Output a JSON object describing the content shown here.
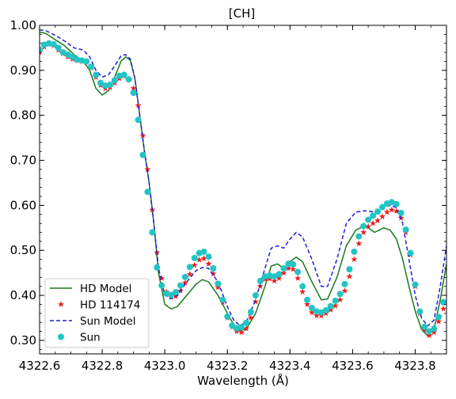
{
  "chart_data": {
    "type": "line",
    "title": "[CH]",
    "xlabel": "Wavelength (Å)",
    "ylabel": "",
    "xlim": [
      4322.6,
      4323.9
    ],
    "ylim": [
      0.27,
      1.0
    ],
    "x_ticks": [
      4322.6,
      4322.8,
      4323.0,
      4323.2,
      4323.4,
      4323.6,
      4323.8
    ],
    "x_tick_labels": [
      "4322.6",
      "4322.8",
      "4323.0",
      "4323.2",
      "4323.4",
      "4323.6",
      "4323.8"
    ],
    "y_ticks": [
      0.3,
      0.4,
      0.5,
      0.6,
      0.7,
      0.8,
      0.9,
      1.0
    ],
    "y_tick_labels": [
      "0.30",
      "0.40",
      "0.50",
      "0.60",
      "0.70",
      "0.80",
      "0.90",
      "1.00"
    ],
    "legend_position": "lower-left",
    "series": [
      {
        "name": "HD Model",
        "style": "line",
        "color": "#1a7a1a",
        "points": [
          [
            4322.6,
            0.985
          ],
          [
            4322.62,
            0.982
          ],
          [
            4322.65,
            0.968
          ],
          [
            4322.68,
            0.955
          ],
          [
            4322.71,
            0.935
          ],
          [
            4322.74,
            0.92
          ],
          [
            4322.76,
            0.9
          ],
          [
            4322.78,
            0.86
          ],
          [
            4322.8,
            0.845
          ],
          [
            4322.82,
            0.855
          ],
          [
            4322.84,
            0.885
          ],
          [
            4322.86,
            0.92
          ],
          [
            4322.875,
            0.93
          ],
          [
            4322.89,
            0.922
          ],
          [
            4322.905,
            0.88
          ],
          [
            4322.92,
            0.8
          ],
          [
            4322.935,
            0.72
          ],
          [
            4322.95,
            0.65
          ],
          [
            4322.965,
            0.56
          ],
          [
            4322.98,
            0.45
          ],
          [
            4323.0,
            0.38
          ],
          [
            4323.02,
            0.37
          ],
          [
            4323.04,
            0.375
          ],
          [
            4323.07,
            0.4
          ],
          [
            4323.1,
            0.425
          ],
          [
            4323.12,
            0.435
          ],
          [
            4323.14,
            0.43
          ],
          [
            4323.17,
            0.4
          ],
          [
            4323.2,
            0.36
          ],
          [
            4323.22,
            0.335
          ],
          [
            4323.24,
            0.322
          ],
          [
            4323.26,
            0.325
          ],
          [
            4323.29,
            0.36
          ],
          [
            4323.32,
            0.42
          ],
          [
            4323.34,
            0.465
          ],
          [
            4323.36,
            0.47
          ],
          [
            4323.38,
            0.46
          ],
          [
            4323.4,
            0.475
          ],
          [
            4323.42,
            0.485
          ],
          [
            4323.44,
            0.475
          ],
          [
            4323.47,
            0.43
          ],
          [
            4323.5,
            0.39
          ],
          [
            4323.52,
            0.392
          ],
          [
            4323.55,
            0.44
          ],
          [
            4323.58,
            0.51
          ],
          [
            4323.61,
            0.545
          ],
          [
            4323.64,
            0.555
          ],
          [
            4323.67,
            0.54
          ],
          [
            4323.7,
            0.55
          ],
          [
            4323.72,
            0.545
          ],
          [
            4323.74,
            0.525
          ],
          [
            4323.76,
            0.48
          ],
          [
            4323.78,
            0.42
          ],
          [
            4323.8,
            0.365
          ],
          [
            4323.82,
            0.325
          ],
          [
            4323.84,
            0.31
          ],
          [
            4323.86,
            0.325
          ],
          [
            4323.88,
            0.39
          ],
          [
            4323.9,
            0.47
          ]
        ]
      },
      {
        "name": "HD 114174",
        "style": "star",
        "color": "#ee1c1c",
        "points": [
          [
            4322.6,
            0.94
          ],
          [
            4322.615,
            0.952
          ],
          [
            4322.63,
            0.958
          ],
          [
            4322.645,
            0.955
          ],
          [
            4322.66,
            0.945
          ],
          [
            4322.675,
            0.937
          ],
          [
            4322.69,
            0.93
          ],
          [
            4322.705,
            0.925
          ],
          [
            4322.72,
            0.922
          ],
          [
            4322.735,
            0.92
          ],
          [
            4322.75,
            0.918
          ],
          [
            4322.765,
            0.905
          ],
          [
            4322.78,
            0.885
          ],
          [
            4322.795,
            0.867
          ],
          [
            4322.81,
            0.86
          ],
          [
            4322.825,
            0.862
          ],
          [
            4322.84,
            0.872
          ],
          [
            4322.855,
            0.882
          ],
          [
            4322.87,
            0.887
          ],
          [
            4322.885,
            0.88
          ],
          [
            4322.9,
            0.86
          ],
          [
            4322.915,
            0.822
          ],
          [
            4322.93,
            0.755
          ],
          [
            4322.945,
            0.68
          ],
          [
            4322.96,
            0.59
          ],
          [
            4322.975,
            0.495
          ],
          [
            4322.99,
            0.438
          ],
          [
            4323.005,
            0.408
          ],
          [
            4323.02,
            0.396
          ],
          [
            4323.035,
            0.398
          ],
          [
            4323.05,
            0.41
          ],
          [
            4323.065,
            0.428
          ],
          [
            4323.08,
            0.447
          ],
          [
            4323.095,
            0.467
          ],
          [
            4323.11,
            0.479
          ],
          [
            4323.125,
            0.482
          ],
          [
            4323.14,
            0.47
          ],
          [
            4323.155,
            0.448
          ],
          [
            4323.17,
            0.418
          ],
          [
            4323.185,
            0.385
          ],
          [
            4323.2,
            0.35
          ],
          [
            4323.215,
            0.33
          ],
          [
            4323.23,
            0.32
          ],
          [
            4323.245,
            0.318
          ],
          [
            4323.26,
            0.326
          ],
          [
            4323.275,
            0.35
          ],
          [
            4323.29,
            0.386
          ],
          [
            4323.305,
            0.42
          ],
          [
            4323.32,
            0.436
          ],
          [
            4323.335,
            0.437
          ],
          [
            4323.35,
            0.432
          ],
          [
            4323.365,
            0.438
          ],
          [
            4323.38,
            0.45
          ],
          [
            4323.395,
            0.46
          ],
          [
            4323.41,
            0.458
          ],
          [
            4323.425,
            0.438
          ],
          [
            4323.44,
            0.408
          ],
          [
            4323.455,
            0.38
          ],
          [
            4323.47,
            0.362
          ],
          [
            4323.485,
            0.355
          ],
          [
            4323.5,
            0.355
          ],
          [
            4323.515,
            0.36
          ],
          [
            4323.53,
            0.368
          ],
          [
            4323.545,
            0.377
          ],
          [
            4323.56,
            0.39
          ],
          [
            4323.575,
            0.41
          ],
          [
            4323.59,
            0.442
          ],
          [
            4323.605,
            0.48
          ],
          [
            4323.62,
            0.515
          ],
          [
            4323.635,
            0.54
          ],
          [
            4323.65,
            0.553
          ],
          [
            4323.665,
            0.56
          ],
          [
            4323.68,
            0.566
          ],
          [
            4323.695,
            0.575
          ],
          [
            4323.71,
            0.585
          ],
          [
            4323.725,
            0.59
          ],
          [
            4323.74,
            0.587
          ],
          [
            4323.755,
            0.572
          ],
          [
            4323.77,
            0.54
          ],
          [
            4323.785,
            0.49
          ],
          [
            4323.8,
            0.42
          ],
          [
            4323.815,
            0.36
          ],
          [
            4323.83,
            0.323
          ],
          [
            4323.845,
            0.311
          ],
          [
            4323.86,
            0.318
          ],
          [
            4323.875,
            0.342
          ],
          [
            4323.89,
            0.37
          ]
        ]
      },
      {
        "name": "Sun Model",
        "style": "dashed",
        "color": "#1f1fd6",
        "points": [
          [
            4322.6,
            0.99
          ],
          [
            4322.62,
            0.988
          ],
          [
            4322.65,
            0.978
          ],
          [
            4322.68,
            0.965
          ],
          [
            4322.71,
            0.95
          ],
          [
            4322.74,
            0.945
          ],
          [
            4322.76,
            0.93
          ],
          [
            4322.78,
            0.9
          ],
          [
            4322.8,
            0.885
          ],
          [
            4322.82,
            0.89
          ],
          [
            4322.84,
            0.91
          ],
          [
            4322.86,
            0.932
          ],
          [
            4322.875,
            0.935
          ],
          [
            4322.89,
            0.925
          ],
          [
            4322.905,
            0.88
          ],
          [
            4322.92,
            0.8
          ],
          [
            4322.935,
            0.72
          ],
          [
            4322.95,
            0.65
          ],
          [
            4322.965,
            0.56
          ],
          [
            4322.98,
            0.46
          ],
          [
            4323.0,
            0.4
          ],
          [
            4323.02,
            0.393
          ],
          [
            4323.04,
            0.4
          ],
          [
            4323.07,
            0.43
          ],
          [
            4323.1,
            0.455
          ],
          [
            4323.12,
            0.462
          ],
          [
            4323.14,
            0.46
          ],
          [
            4323.17,
            0.43
          ],
          [
            4323.2,
            0.375
          ],
          [
            4323.22,
            0.345
          ],
          [
            4323.24,
            0.333
          ],
          [
            4323.26,
            0.34
          ],
          [
            4323.29,
            0.39
          ],
          [
            4323.32,
            0.46
          ],
          [
            4323.34,
            0.505
          ],
          [
            4323.36,
            0.51
          ],
          [
            4323.38,
            0.505
          ],
          [
            4323.4,
            0.525
          ],
          [
            4323.42,
            0.54
          ],
          [
            4323.44,
            0.53
          ],
          [
            4323.47,
            0.48
          ],
          [
            4323.5,
            0.42
          ],
          [
            4323.52,
            0.42
          ],
          [
            4323.55,
            0.48
          ],
          [
            4323.58,
            0.56
          ],
          [
            4323.61,
            0.585
          ],
          [
            4323.64,
            0.588
          ],
          [
            4323.67,
            0.585
          ],
          [
            4323.7,
            0.595
          ],
          [
            4323.72,
            0.6
          ],
          [
            4323.74,
            0.595
          ],
          [
            4323.76,
            0.56
          ],
          [
            4323.78,
            0.48
          ],
          [
            4323.8,
            0.4
          ],
          [
            4323.82,
            0.35
          ],
          [
            4323.84,
            0.332
          ],
          [
            4323.86,
            0.345
          ],
          [
            4323.88,
            0.42
          ],
          [
            4323.9,
            0.51
          ]
        ]
      },
      {
        "name": "Sun",
        "style": "circle",
        "color": "#22c4c4",
        "points": [
          [
            4322.6,
            0.946
          ],
          [
            4322.615,
            0.957
          ],
          [
            4322.63,
            0.96
          ],
          [
            4322.645,
            0.958
          ],
          [
            4322.66,
            0.95
          ],
          [
            4322.675,
            0.94
          ],
          [
            4322.69,
            0.935
          ],
          [
            4322.705,
            0.93
          ],
          [
            4322.72,
            0.924
          ],
          [
            4322.735,
            0.922
          ],
          [
            4322.75,
            0.92
          ],
          [
            4322.765,
            0.908
          ],
          [
            4322.78,
            0.89
          ],
          [
            4322.795,
            0.872
          ],
          [
            4322.81,
            0.866
          ],
          [
            4322.825,
            0.868
          ],
          [
            4322.84,
            0.878
          ],
          [
            4322.855,
            0.888
          ],
          [
            4322.87,
            0.89
          ],
          [
            4322.885,
            0.88
          ],
          [
            4322.9,
            0.85
          ],
          [
            4322.915,
            0.79
          ],
          [
            4322.93,
            0.712
          ],
          [
            4322.945,
            0.63
          ],
          [
            4322.96,
            0.54
          ],
          [
            4322.975,
            0.462
          ],
          [
            4322.99,
            0.422
          ],
          [
            4323.005,
            0.404
          ],
          [
            4323.02,
            0.401
          ],
          [
            4323.035,
            0.407
          ],
          [
            4323.05,
            0.422
          ],
          [
            4323.065,
            0.441
          ],
          [
            4323.08,
            0.463
          ],
          [
            4323.095,
            0.483
          ],
          [
            4323.11,
            0.494
          ],
          [
            4323.125,
            0.497
          ],
          [
            4323.14,
            0.486
          ],
          [
            4323.155,
            0.46
          ],
          [
            4323.17,
            0.426
          ],
          [
            4323.185,
            0.39
          ],
          [
            4323.2,
            0.353
          ],
          [
            4323.215,
            0.333
          ],
          [
            4323.23,
            0.327
          ],
          [
            4323.245,
            0.329
          ],
          [
            4323.26,
            0.339
          ],
          [
            4323.275,
            0.363
          ],
          [
            4323.29,
            0.4
          ],
          [
            4323.305,
            0.432
          ],
          [
            4323.32,
            0.442
          ],
          [
            4323.335,
            0.444
          ],
          [
            4323.35,
            0.442
          ],
          [
            4323.365,
            0.447
          ],
          [
            4323.38,
            0.46
          ],
          [
            4323.395,
            0.47
          ],
          [
            4323.41,
            0.469
          ],
          [
            4323.425,
            0.452
          ],
          [
            4323.44,
            0.42
          ],
          [
            4323.455,
            0.39
          ],
          [
            4323.47,
            0.372
          ],
          [
            4323.485,
            0.364
          ],
          [
            4323.5,
            0.362
          ],
          [
            4323.515,
            0.367
          ],
          [
            4323.53,
            0.376
          ],
          [
            4323.545,
            0.388
          ],
          [
            4323.56,
            0.403
          ],
          [
            4323.575,
            0.425
          ],
          [
            4323.59,
            0.458
          ],
          [
            4323.605,
            0.497
          ],
          [
            4323.62,
            0.531
          ],
          [
            4323.635,
            0.554
          ],
          [
            4323.65,
            0.568
          ],
          [
            4323.665,
            0.577
          ],
          [
            4323.68,
            0.586
          ],
          [
            4323.695,
            0.596
          ],
          [
            4323.71,
            0.604
          ],
          [
            4323.725,
            0.607
          ],
          [
            4323.74,
            0.603
          ],
          [
            4323.755,
            0.583
          ],
          [
            4323.77,
            0.546
          ],
          [
            4323.785,
            0.494
          ],
          [
            4323.8,
            0.424
          ],
          [
            4323.815,
            0.364
          ],
          [
            4323.83,
            0.33
          ],
          [
            4323.845,
            0.32
          ],
          [
            4323.86,
            0.326
          ],
          [
            4323.875,
            0.352
          ],
          [
            4323.89,
            0.385
          ]
        ]
      }
    ]
  }
}
